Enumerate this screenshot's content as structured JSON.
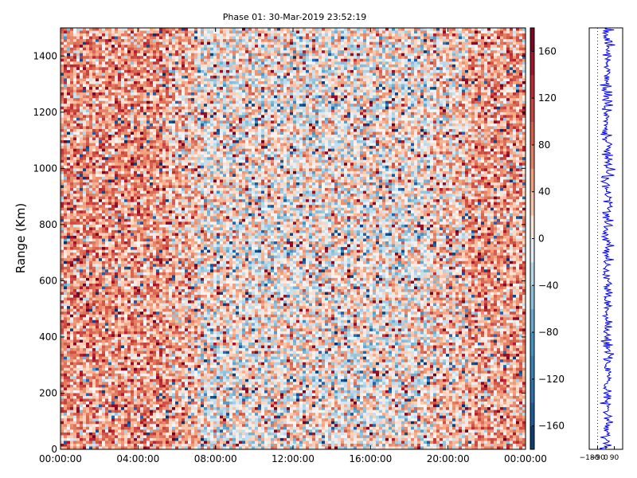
{
  "chart_data": [
    {
      "type": "heatmap",
      "title": "Phase 01: 30-Mar-2019 23:52:19",
      "xlabel": "",
      "ylabel": "Range (Km)",
      "x_tick_labels": [
        "00:00:00",
        "04:00:00",
        "08:00:00",
        "12:00:00",
        "16:00:00",
        "20:00:00",
        "00:00:00"
      ],
      "y_ticks": [
        0,
        200,
        400,
        600,
        800,
        1000,
        1200,
        1400
      ],
      "ylim": [
        0,
        1500
      ],
      "xlim_hours": [
        0,
        24
      ],
      "colormap": "RdBu_r",
      "color_range": [
        -180,
        180
      ],
      "colorbar_ticks": [
        -160,
        -120,
        -80,
        -40,
        0,
        40,
        80,
        120,
        160
      ],
      "colors": {
        "positive_extreme": "#67001f",
        "positive_mid": "#f4a582",
        "neutral": "#f7f7f7",
        "negative_mid": "#92c5de",
        "negative_extreme": "#053061"
      },
      "pattern_note": "Noisy phase values; predominantly positive (red) from 00:00 to ~06:00 and after ~20:00, near zero / mixed (white-blue) in middle hours"
    },
    {
      "type": "line",
      "orientation": "vertical",
      "x_tick_labels": [
        "-180",
        "-90",
        "0",
        "90"
      ],
      "xlim": [
        -180,
        180
      ],
      "ylim": [
        0,
        1500
      ],
      "series_color": "#0000ff",
      "pattern_note": "Noisy phase profile vs range oscillating roughly between -40 and +60"
    }
  ]
}
